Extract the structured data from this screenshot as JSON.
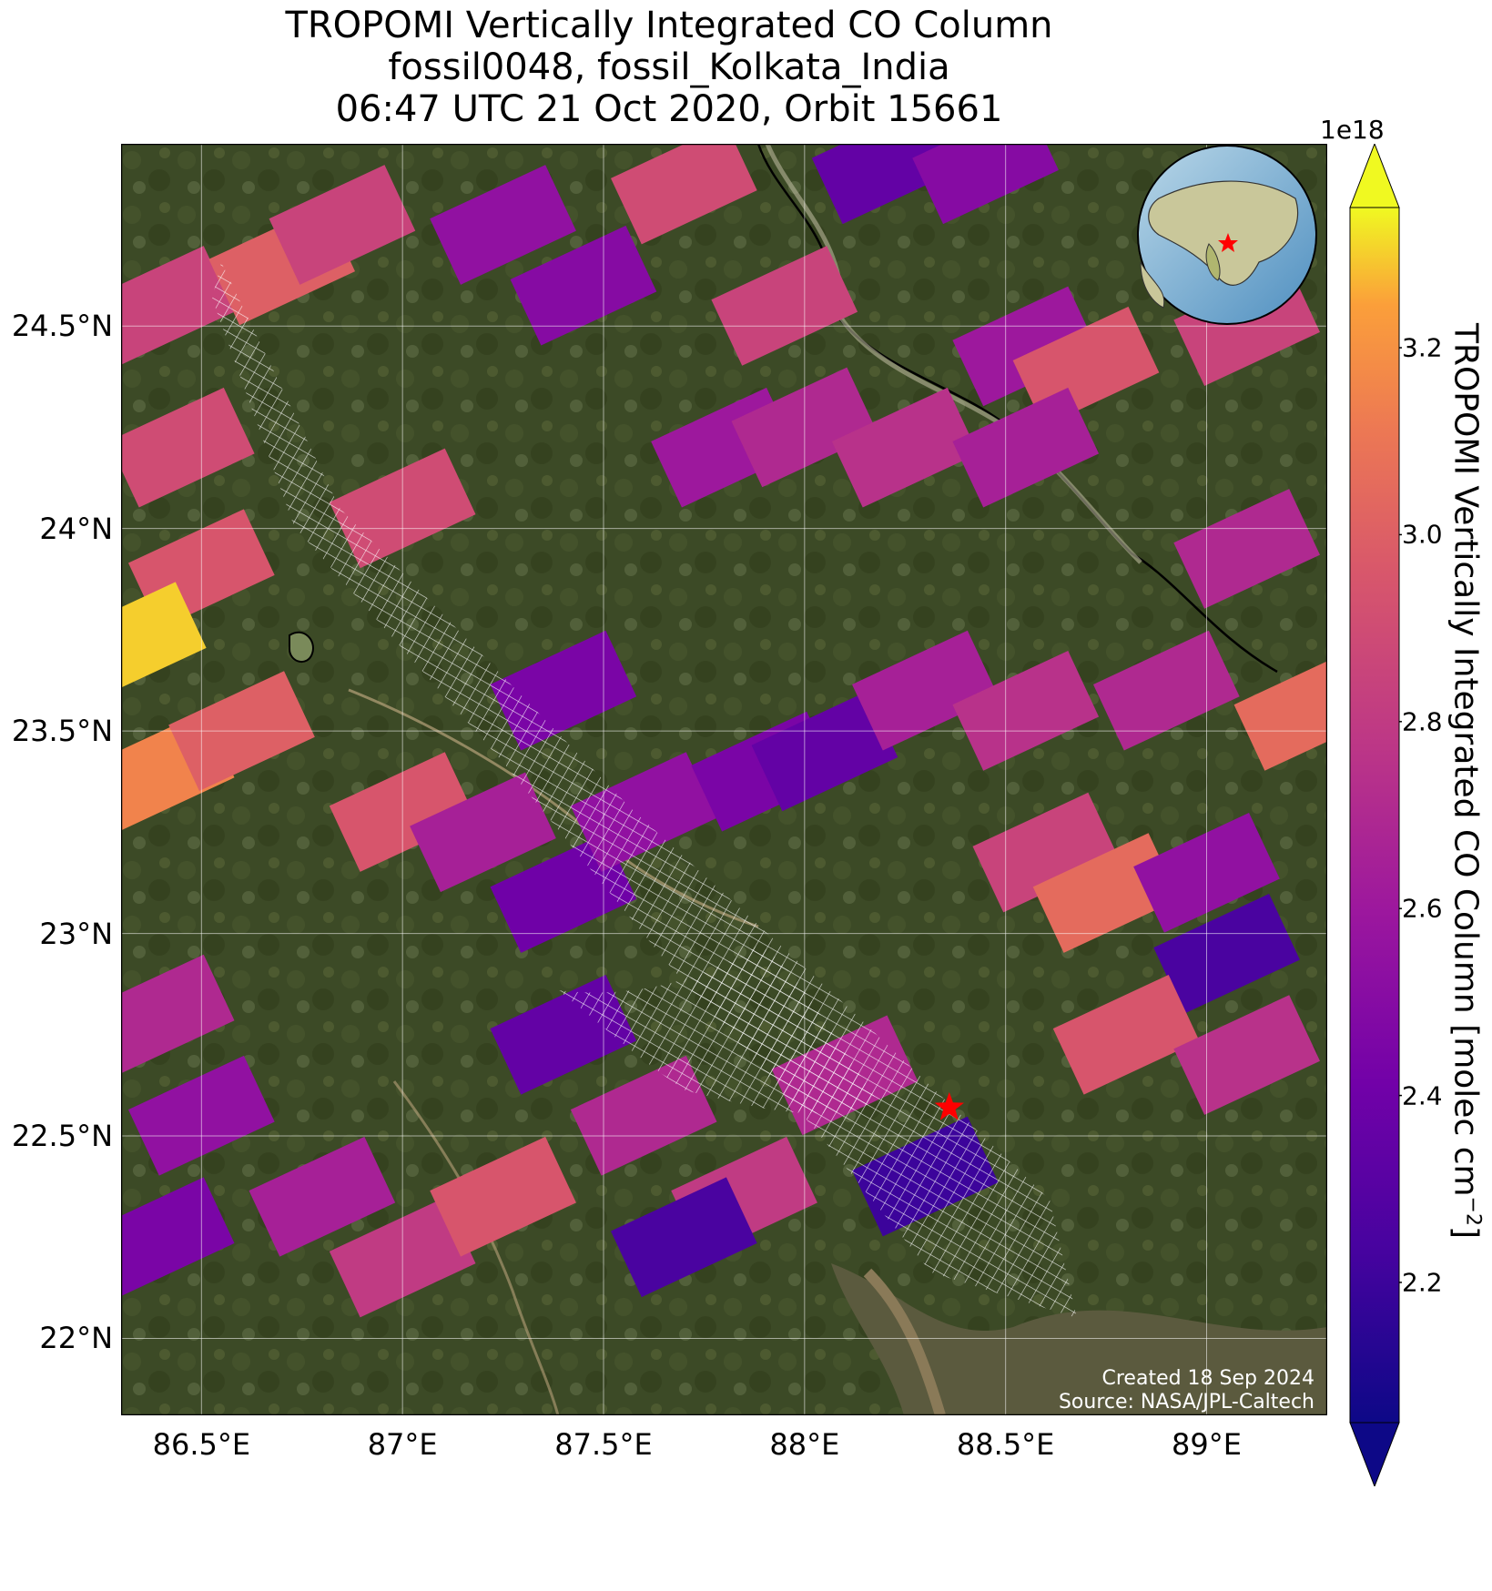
{
  "title": {
    "line1": "TROPOMI Vertically Integrated CO Column",
    "line2": "fossil0048, fossil_Kolkata_India",
    "line3": "06:47 UTC 21 Oct 2020, Orbit 15661"
  },
  "map": {
    "extent": {
      "lon_min": 86.3,
      "lon_max": 89.3,
      "lat_min": 21.81,
      "lat_max": 24.95
    },
    "x_ticks": [
      {
        "value": 86.5,
        "label": "86.5°E"
      },
      {
        "value": 87.0,
        "label": "87°E"
      },
      {
        "value": 87.5,
        "label": "87.5°E"
      },
      {
        "value": 88.0,
        "label": "88°E"
      },
      {
        "value": 88.5,
        "label": "88.5°E"
      },
      {
        "value": 89.0,
        "label": "89°E"
      }
    ],
    "y_ticks": [
      {
        "value": 24.5,
        "label": "24.5°N"
      },
      {
        "value": 24.0,
        "label": "24°N"
      },
      {
        "value": 23.5,
        "label": "23.5°N"
      },
      {
        "value": 23.0,
        "label": "23°N"
      },
      {
        "value": 22.5,
        "label": "22.5°N"
      },
      {
        "value": 22.0,
        "label": "22°N"
      }
    ],
    "grid": true,
    "basemap": "satellite imagery",
    "target_site": {
      "lon": 88.36,
      "lat": 22.57,
      "marker": "red-star"
    },
    "inset": {
      "type": "globe",
      "region": "Asia",
      "marker": "red-star",
      "placement": "top-right"
    }
  },
  "colorbar": {
    "colormap": "plasma",
    "min": 2.05,
    "max": 3.35,
    "exponent_label": "1e18",
    "ticks": [
      "2.2",
      "2.4",
      "2.6",
      "2.8",
      "3.0",
      "3.2"
    ],
    "tick_values": [
      2.2,
      2.4,
      2.6,
      2.8,
      3.0,
      3.2
    ],
    "label": "TROPOMI Vertically Integrated CO Column [molec cm",
    "label_sup": "−2",
    "label_end": "]",
    "extend": "both"
  },
  "credits": {
    "line1": "Created 18 Sep 2024",
    "line2": "Source: NASA/JPL-Caltech"
  },
  "chart_data": {
    "type": "heatmap",
    "title": "TROPOMI Vertically Integrated CO Column",
    "xlabel": "",
    "ylabel": "",
    "xlim": [
      86.3,
      89.3
    ],
    "ylim": [
      21.81,
      24.95
    ],
    "value_units": "molec cm^-2 (×1e18)",
    "pixels": [
      {
        "lon": 86.4,
        "lat": 24.55,
        "value": 2.85
      },
      {
        "lon": 86.45,
        "lat": 24.2,
        "value": 2.9
      },
      {
        "lon": 86.5,
        "lat": 23.9,
        "value": 2.95
      },
      {
        "lon": 86.33,
        "lat": 23.72,
        "value": 3.3
      },
      {
        "lon": 86.4,
        "lat": 23.4,
        "value": 3.15
      },
      {
        "lon": 86.6,
        "lat": 23.5,
        "value": 3.0
      },
      {
        "lon": 86.7,
        "lat": 24.65,
        "value": 3.0
      },
      {
        "lon": 86.85,
        "lat": 24.75,
        "value": 2.85
      },
      {
        "lon": 87.0,
        "lat": 24.05,
        "value": 2.9
      },
      {
        "lon": 87.0,
        "lat": 23.3,
        "value": 2.95
      },
      {
        "lon": 87.2,
        "lat": 23.25,
        "value": 2.65
      },
      {
        "lon": 87.4,
        "lat": 23.6,
        "value": 2.45
      },
      {
        "lon": 87.25,
        "lat": 24.75,
        "value": 2.55
      },
      {
        "lon": 87.45,
        "lat": 24.6,
        "value": 2.5
      },
      {
        "lon": 87.7,
        "lat": 24.85,
        "value": 2.9
      },
      {
        "lon": 87.95,
        "lat": 24.55,
        "value": 2.85
      },
      {
        "lon": 88.2,
        "lat": 24.9,
        "value": 2.35
      },
      {
        "lon": 88.45,
        "lat": 24.9,
        "value": 2.5
      },
      {
        "lon": 88.55,
        "lat": 24.45,
        "value": 2.6
      },
      {
        "lon": 88.7,
        "lat": 24.4,
        "value": 2.95
      },
      {
        "lon": 89.1,
        "lat": 24.5,
        "value": 2.85
      },
      {
        "lon": 87.8,
        "lat": 24.2,
        "value": 2.6
      },
      {
        "lon": 88.0,
        "lat": 24.25,
        "value": 2.7
      },
      {
        "lon": 88.25,
        "lat": 24.2,
        "value": 2.75
      },
      {
        "lon": 88.55,
        "lat": 24.2,
        "value": 2.65
      },
      {
        "lon": 89.1,
        "lat": 23.95,
        "value": 2.7
      },
      {
        "lon": 87.4,
        "lat": 23.1,
        "value": 2.4
      },
      {
        "lon": 87.6,
        "lat": 23.3,
        "value": 2.55
      },
      {
        "lon": 87.9,
        "lat": 23.4,
        "value": 2.45
      },
      {
        "lon": 88.05,
        "lat": 23.45,
        "value": 2.35
      },
      {
        "lon": 88.3,
        "lat": 23.6,
        "value": 2.65
      },
      {
        "lon": 88.55,
        "lat": 23.55,
        "value": 2.75
      },
      {
        "lon": 88.9,
        "lat": 23.6,
        "value": 2.7
      },
      {
        "lon": 89.25,
        "lat": 23.55,
        "value": 3.05
      },
      {
        "lon": 88.6,
        "lat": 23.2,
        "value": 2.85
      },
      {
        "lon": 88.75,
        "lat": 23.1,
        "value": 3.05
      },
      {
        "lon": 89.0,
        "lat": 23.15,
        "value": 2.55
      },
      {
        "lon": 89.05,
        "lat": 22.95,
        "value": 2.25
      },
      {
        "lon": 88.8,
        "lat": 22.75,
        "value": 2.95
      },
      {
        "lon": 89.1,
        "lat": 22.7,
        "value": 2.75
      },
      {
        "lon": 86.4,
        "lat": 22.8,
        "value": 2.7
      },
      {
        "lon": 86.5,
        "lat": 22.55,
        "value": 2.55
      },
      {
        "lon": 86.4,
        "lat": 22.25,
        "value": 2.45
      },
      {
        "lon": 86.8,
        "lat": 22.35,
        "value": 2.65
      },
      {
        "lon": 87.0,
        "lat": 22.2,
        "value": 2.8
      },
      {
        "lon": 87.25,
        "lat": 22.35,
        "value": 2.95
      },
      {
        "lon": 87.4,
        "lat": 22.75,
        "value": 2.35
      },
      {
        "lon": 87.6,
        "lat": 22.55,
        "value": 2.7
      },
      {
        "lon": 87.85,
        "lat": 22.35,
        "value": 2.8
      },
      {
        "lon": 87.7,
        "lat": 22.25,
        "value": 2.25
      },
      {
        "lon": 88.1,
        "lat": 22.65,
        "value": 2.7
      },
      {
        "lon": 88.3,
        "lat": 22.4,
        "value": 2.2
      }
    ]
  }
}
